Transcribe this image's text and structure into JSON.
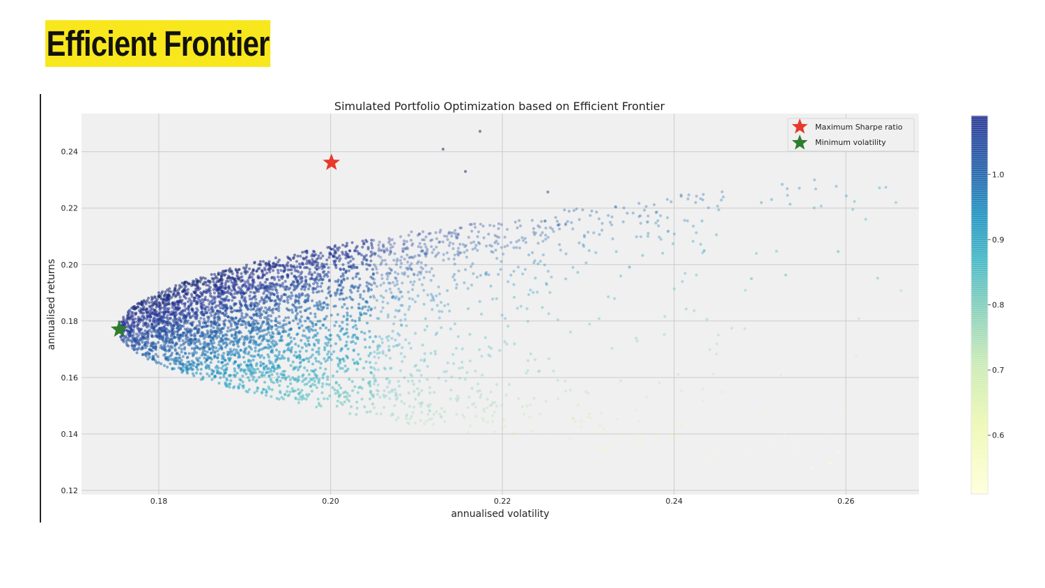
{
  "slide": {
    "title": "Efficient Frontier"
  },
  "chart_data": {
    "type": "scatter",
    "title": "Simulated Portfolio Optimization based on Efficient Frontier",
    "xlabel": "annualised volatility",
    "ylabel": "annualised returns",
    "xlim": [
      0.171,
      0.2685
    ],
    "ylim": [
      0.1185,
      0.2535
    ],
    "xticks": [
      0.18,
      0.2,
      0.22,
      0.24,
      0.26
    ],
    "xtick_labels": [
      "0.18",
      "0.20",
      "0.22",
      "0.24",
      "0.26"
    ],
    "yticks": [
      0.12,
      0.14,
      0.16,
      0.18,
      0.2,
      0.22,
      0.24
    ],
    "ytick_labels": [
      "0.12",
      "0.14",
      "0.16",
      "0.18",
      "0.20",
      "0.22",
      "0.24"
    ],
    "grid": true,
    "legend_position": "top-right",
    "colormap": "YlGnBu",
    "colorbar": {
      "range": [
        0.51,
        1.09
      ],
      "ticks": [
        1.0,
        0.9,
        0.8,
        0.7,
        0.6
      ],
      "tick_labels": [
        "1.0",
        "0.9",
        "0.8",
        "0.7",
        "0.6"
      ]
    },
    "series": [
      {
        "name": "Maximum Sharpe ratio",
        "marker": "star",
        "color": "#e8392b",
        "x": 0.2001,
        "y": 0.2361
      },
      {
        "name": "Minimum volatility",
        "marker": "star",
        "color": "#2e7d2e",
        "x": 0.1754,
        "y": 0.177
      }
    ],
    "cloud": {
      "description_points": [
        {
          "x": 0.2174,
          "y": 0.2472
        },
        {
          "x": 0.2131,
          "y": 0.2409
        },
        {
          "x": 0.2157,
          "y": 0.233
        },
        {
          "x": 0.2253,
          "y": 0.2257
        },
        {
          "x": 0.2369,
          "y": 0.2151
        },
        {
          "x": 0.2393,
          "y": 0.2118
        },
        {
          "x": 0.2435,
          "y": 0.2049
        },
        {
          "x": 0.2591,
          "y": 0.2046
        },
        {
          "x": 0.249,
          "y": 0.195
        },
        {
          "x": 0.2637,
          "y": 0.1952
        },
        {
          "x": 0.253,
          "y": 0.1963
        },
        {
          "x": 0.2348,
          "y": 0.1991
        }
      ]
    }
  },
  "colors": {
    "slide_title_bg": "#f8e71c",
    "plot_bg": "#f0f0f0",
    "grid": "#cbcbcb",
    "max_sharpe_star": "#e8392b",
    "min_vol_star": "#2e7d2e"
  }
}
